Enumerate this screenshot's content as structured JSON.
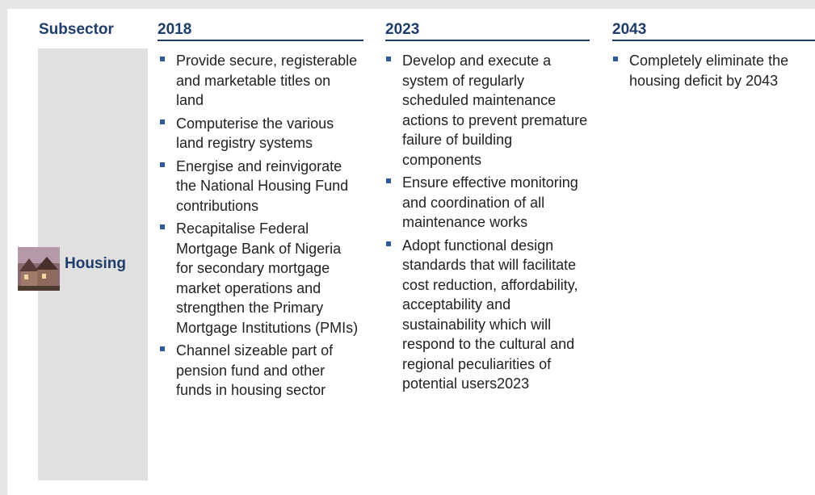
{
  "header": {
    "subsector": "Subsector",
    "columns": [
      "2018",
      "2023",
      "2043"
    ]
  },
  "rows": [
    {
      "subsector": "Housing",
      "cells": [
        [
          "Provide secure, registerable and marketable titles on land",
          "Computerise the various land registry systems",
          "Energise and reinvigorate the National Housing Fund contributions",
          "Recapitalise Federal Mortgage Bank of Nigeria for secondary mortgage market operations and strengthen the Primary Mortgage Institutions (PMIs)",
          "Channel sizeable part of pension fund and other funds in housing sector"
        ],
        [
          "Develop and execute a system of regularly scheduled maintenance actions to prevent premature failure of building components",
          "Ensure effective monitoring and coordination of all maintenance works",
          "Adopt functional design standards that will facilitate cost reduction, affordability, acceptability and sustainability which will respond to the cultural and regional peculiarities of potential users2023"
        ],
        [
          "Completely eliminate the housing deficit by 2043"
        ]
      ]
    }
  ]
}
